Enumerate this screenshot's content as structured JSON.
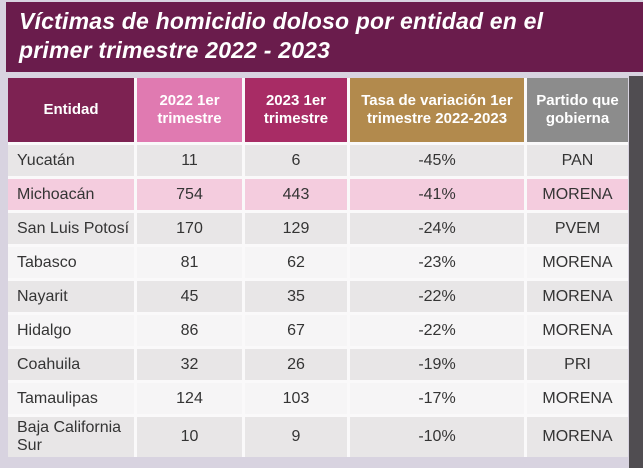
{
  "title": "Víctimas de homicidio doloso por entidad en el primer trimestre 2022 - 2023",
  "table": {
    "headers": [
      "Entidad",
      "2022 1er trimestre",
      "2023 1er trimestre",
      "Tasa de variación 1er trimestre 2022-2023",
      "Partido que gobierna"
    ],
    "rows": [
      [
        "Yucatán",
        "11",
        "6",
        "-45%",
        "PAN"
      ],
      [
        "Michoacán",
        "754",
        "443",
        "-41%",
        "MORENA"
      ],
      [
        "San Luis Potosí",
        "170",
        "129",
        "-24%",
        "PVEM"
      ],
      [
        "Tabasco",
        "81",
        "62",
        "-23%",
        "MORENA"
      ],
      [
        "Nayarit",
        "45",
        "35",
        "-22%",
        "MORENA"
      ],
      [
        "Hidalgo",
        "86",
        "67",
        "-22%",
        "MORENA"
      ],
      [
        "Coahuila",
        "32",
        "26",
        "-19%",
        "PRI"
      ],
      [
        "Tamaulipas",
        "124",
        "103",
        "-17%",
        "MORENA"
      ],
      [
        "Baja California Sur",
        "10",
        "9",
        "-10%",
        "MORENA"
      ]
    ],
    "highlighted_row": "Michoacán"
  },
  "colors": {
    "title_bg": "#6a1c4c",
    "header_entidad": "#7d2252",
    "header_2022": "#e07ab1",
    "header_2023": "#a82c65",
    "header_tasa": "#b28a4d",
    "header_partido": "#8c8c8c",
    "row_odd": "#e8e6e7",
    "row_even": "#f6f5f6",
    "row_highlight": "#f4ccde",
    "right_strip": "#504d51",
    "page_edge": "#d8d3e0"
  }
}
